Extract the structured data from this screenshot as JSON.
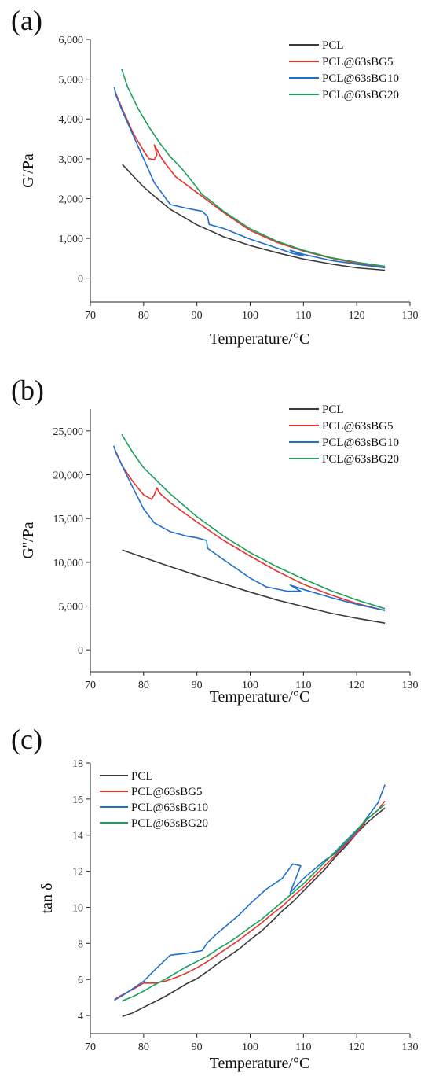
{
  "colors": {
    "PCL": "#3a3a3a",
    "PCL@63sBG5": "#e8322d",
    "PCL@63sBG10": "#1f6fcc",
    "PCL@63sBG20": "#1aa05a"
  },
  "chart_data": [
    {
      "panel_label": "(a)",
      "type": "line",
      "xlabel": "Temperature/°C",
      "ylabel": "G'/Pa",
      "xlim": [
        70,
        130
      ],
      "ylim": [
        -600,
        6000
      ],
      "xticks": [
        70,
        80,
        90,
        100,
        110,
        120,
        130
      ],
      "yticks": [
        0,
        1000,
        2000,
        3000,
        4000,
        5000,
        6000
      ],
      "ytick_labels": [
        "0",
        "1,000",
        "2,000",
        "3,000",
        "4,000",
        "5,000",
        "6,000"
      ],
      "grid": false,
      "legend_position": "top-right",
      "series": [
        {
          "name": "PCL",
          "x": [
            76,
            78,
            80,
            82,
            85,
            90,
            95,
            100,
            105,
            110,
            115,
            120,
            125.3
          ],
          "y": [
            2860,
            2570,
            2290,
            2060,
            1730,
            1340,
            1040,
            820,
            640,
            480,
            360,
            260,
            200
          ]
        },
        {
          "name": "PCL@63sBG5",
          "x": [
            74.6,
            76,
            78,
            80,
            81,
            82,
            82.5,
            82,
            83.5,
            86,
            90,
            95,
            100,
            105,
            110,
            115,
            120,
            125.3
          ],
          "y": [
            4700,
            4250,
            3650,
            3200,
            3000,
            2980,
            3100,
            3350,
            2980,
            2550,
            2150,
            1650,
            1200,
            900,
            680,
            510,
            370,
            270
          ]
        },
        {
          "name": "PCL@63sBG10",
          "x": [
            74.5,
            74.8,
            76,
            78,
            80,
            82,
            85,
            88,
            91,
            92,
            92.3,
            95,
            100,
            105,
            108,
            110,
            107.5,
            110,
            115,
            120,
            125.3
          ],
          "y": [
            4800,
            4600,
            4200,
            3600,
            3000,
            2400,
            1850,
            1760,
            1680,
            1550,
            1350,
            1250,
            980,
            760,
            620,
            560,
            700,
            600,
            450,
            350,
            260
          ]
        },
        {
          "name": "PCL@63sBG20",
          "x": [
            75.9,
            77,
            79,
            81,
            83,
            85,
            87,
            89,
            91,
            93,
            95,
            100,
            105,
            110,
            115,
            120,
            125.3
          ],
          "y": [
            5250,
            4800,
            4250,
            3800,
            3400,
            3050,
            2780,
            2450,
            2100,
            1900,
            1680,
            1240,
            930,
            700,
            520,
            400,
            300
          ]
        }
      ]
    },
    {
      "panel_label": "(b)",
      "type": "line",
      "xlabel": "Temperature/°C",
      "ylabel": "G''/Pa",
      "xlim": [
        70,
        130
      ],
      "ylim": [
        -2500,
        27500
      ],
      "xticks": [
        70,
        80,
        90,
        100,
        110,
        120,
        130
      ],
      "yticks": [
        0,
        5000,
        10000,
        15000,
        20000,
        25000
      ],
      "ytick_labels": [
        "0",
        "5,000",
        "10,000",
        "15,000",
        "20,000",
        "25,000"
      ],
      "grid": false,
      "legend_position": "top-right",
      "series": [
        {
          "name": "PCL",
          "x": [
            76,
            80,
            85,
            90,
            95,
            100,
            105,
            110,
            115,
            120,
            125.3
          ],
          "y": [
            11400,
            10550,
            9500,
            8500,
            7550,
            6600,
            5700,
            4950,
            4200,
            3600,
            3050
          ]
        },
        {
          "name": "PCL@63sBG5",
          "x": [
            74.6,
            76,
            78,
            80,
            81.5,
            82,
            82.5,
            83,
            85,
            90,
            95,
            100,
            105,
            110,
            115,
            120,
            125.3
          ],
          "y": [
            22900,
            21000,
            19200,
            17700,
            17200,
            17700,
            18500,
            17900,
            16800,
            14600,
            12500,
            10700,
            9000,
            7500,
            6300,
            5300,
            4500
          ]
        },
        {
          "name": "PCL@63sBG10",
          "x": [
            74.4,
            74.8,
            76,
            78,
            80,
            82,
            85,
            88,
            90,
            91.8,
            92,
            95,
            100,
            103,
            107,
            109.5,
            107.5,
            110,
            115,
            120,
            125.3
          ],
          "y": [
            23300,
            22500,
            21000,
            18500,
            16100,
            14500,
            13500,
            13000,
            12800,
            12500,
            11600,
            10300,
            8200,
            7200,
            6700,
            6700,
            7400,
            6900,
            6000,
            5200,
            4500
          ]
        },
        {
          "name": "PCL@63sBG20",
          "x": [
            75.9,
            78,
            80,
            85,
            90,
            95,
            100,
            105,
            110,
            115,
            120,
            125.3
          ],
          "y": [
            24600,
            22500,
            20800,
            17800,
            15200,
            13000,
            11100,
            9500,
            8100,
            6800,
            5700,
            4700
          ]
        }
      ]
    },
    {
      "panel_label": "(c)",
      "type": "line",
      "xlabel": "Temperature/°C",
      "ylabel": "tan δ",
      "xlim": [
        70,
        130
      ],
      "ylim": [
        3,
        18
      ],
      "xticks": [
        70,
        80,
        90,
        100,
        110,
        120,
        130
      ],
      "yticks": [
        4,
        6,
        8,
        10,
        12,
        14,
        16,
        18
      ],
      "ytick_labels": [
        "4",
        "6",
        "8",
        "10",
        "12",
        "14",
        "16",
        "18"
      ],
      "grid": false,
      "legend_position": "top-left",
      "series": [
        {
          "name": "PCL",
          "x": [
            76,
            78,
            80,
            82,
            84,
            86,
            88,
            90,
            92,
            94,
            96,
            98,
            100,
            102,
            104,
            106,
            108,
            110,
            112,
            114,
            116,
            118,
            120,
            122,
            124,
            125.3
          ],
          "y": [
            3.95,
            4.15,
            4.45,
            4.75,
            5.05,
            5.4,
            5.75,
            6.05,
            6.45,
            6.9,
            7.3,
            7.7,
            8.2,
            8.65,
            9.2,
            9.8,
            10.3,
            10.9,
            11.5,
            12.1,
            12.8,
            13.4,
            14.1,
            14.7,
            15.2,
            15.5
          ]
        },
        {
          "name": "PCL@63sBG5",
          "x": [
            74.6,
            76,
            78,
            80,
            82,
            84,
            86,
            88,
            90,
            92,
            94,
            96,
            98,
            100,
            102,
            104,
            106,
            108,
            110,
            112,
            114,
            116,
            118,
            120,
            122,
            124,
            125.3
          ],
          "y": [
            4.9,
            5.15,
            5.45,
            5.8,
            5.8,
            5.9,
            6.1,
            6.35,
            6.65,
            7.0,
            7.4,
            7.8,
            8.2,
            8.65,
            9.1,
            9.6,
            10.05,
            10.6,
            11.1,
            11.7,
            12.3,
            12.9,
            13.5,
            14.1,
            14.9,
            15.4,
            15.9
          ]
        },
        {
          "name": "PCL@63sBG10",
          "x": [
            74.5,
            76,
            78,
            80,
            82,
            85,
            88,
            91,
            92,
            94,
            96,
            98,
            100,
            103,
            106,
            108,
            109.5,
            107.5,
            110,
            112,
            114,
            116,
            118,
            120,
            122,
            124,
            125.3
          ],
          "y": [
            4.85,
            5.1,
            5.5,
            5.9,
            6.5,
            7.35,
            7.45,
            7.6,
            8.05,
            8.6,
            9.1,
            9.6,
            10.2,
            11.0,
            11.6,
            12.4,
            12.3,
            10.8,
            11.6,
            12.1,
            12.6,
            13.0,
            13.6,
            14.2,
            15.0,
            15.8,
            16.8
          ]
        },
        {
          "name": "PCL@63sBG20",
          "x": [
            75.9,
            78,
            80,
            82,
            84,
            86,
            88,
            90,
            92,
            94,
            96,
            98,
            100,
            102,
            104,
            106,
            108,
            110,
            112,
            114,
            116,
            118,
            120,
            122,
            124,
            125.3
          ],
          "y": [
            4.8,
            5.05,
            5.35,
            5.7,
            6.0,
            6.35,
            6.7,
            7.0,
            7.3,
            7.7,
            8.05,
            8.45,
            8.9,
            9.3,
            9.8,
            10.3,
            10.8,
            11.3,
            11.9,
            12.5,
            13.1,
            13.7,
            14.3,
            14.9,
            15.4,
            15.7
          ]
        }
      ]
    }
  ]
}
